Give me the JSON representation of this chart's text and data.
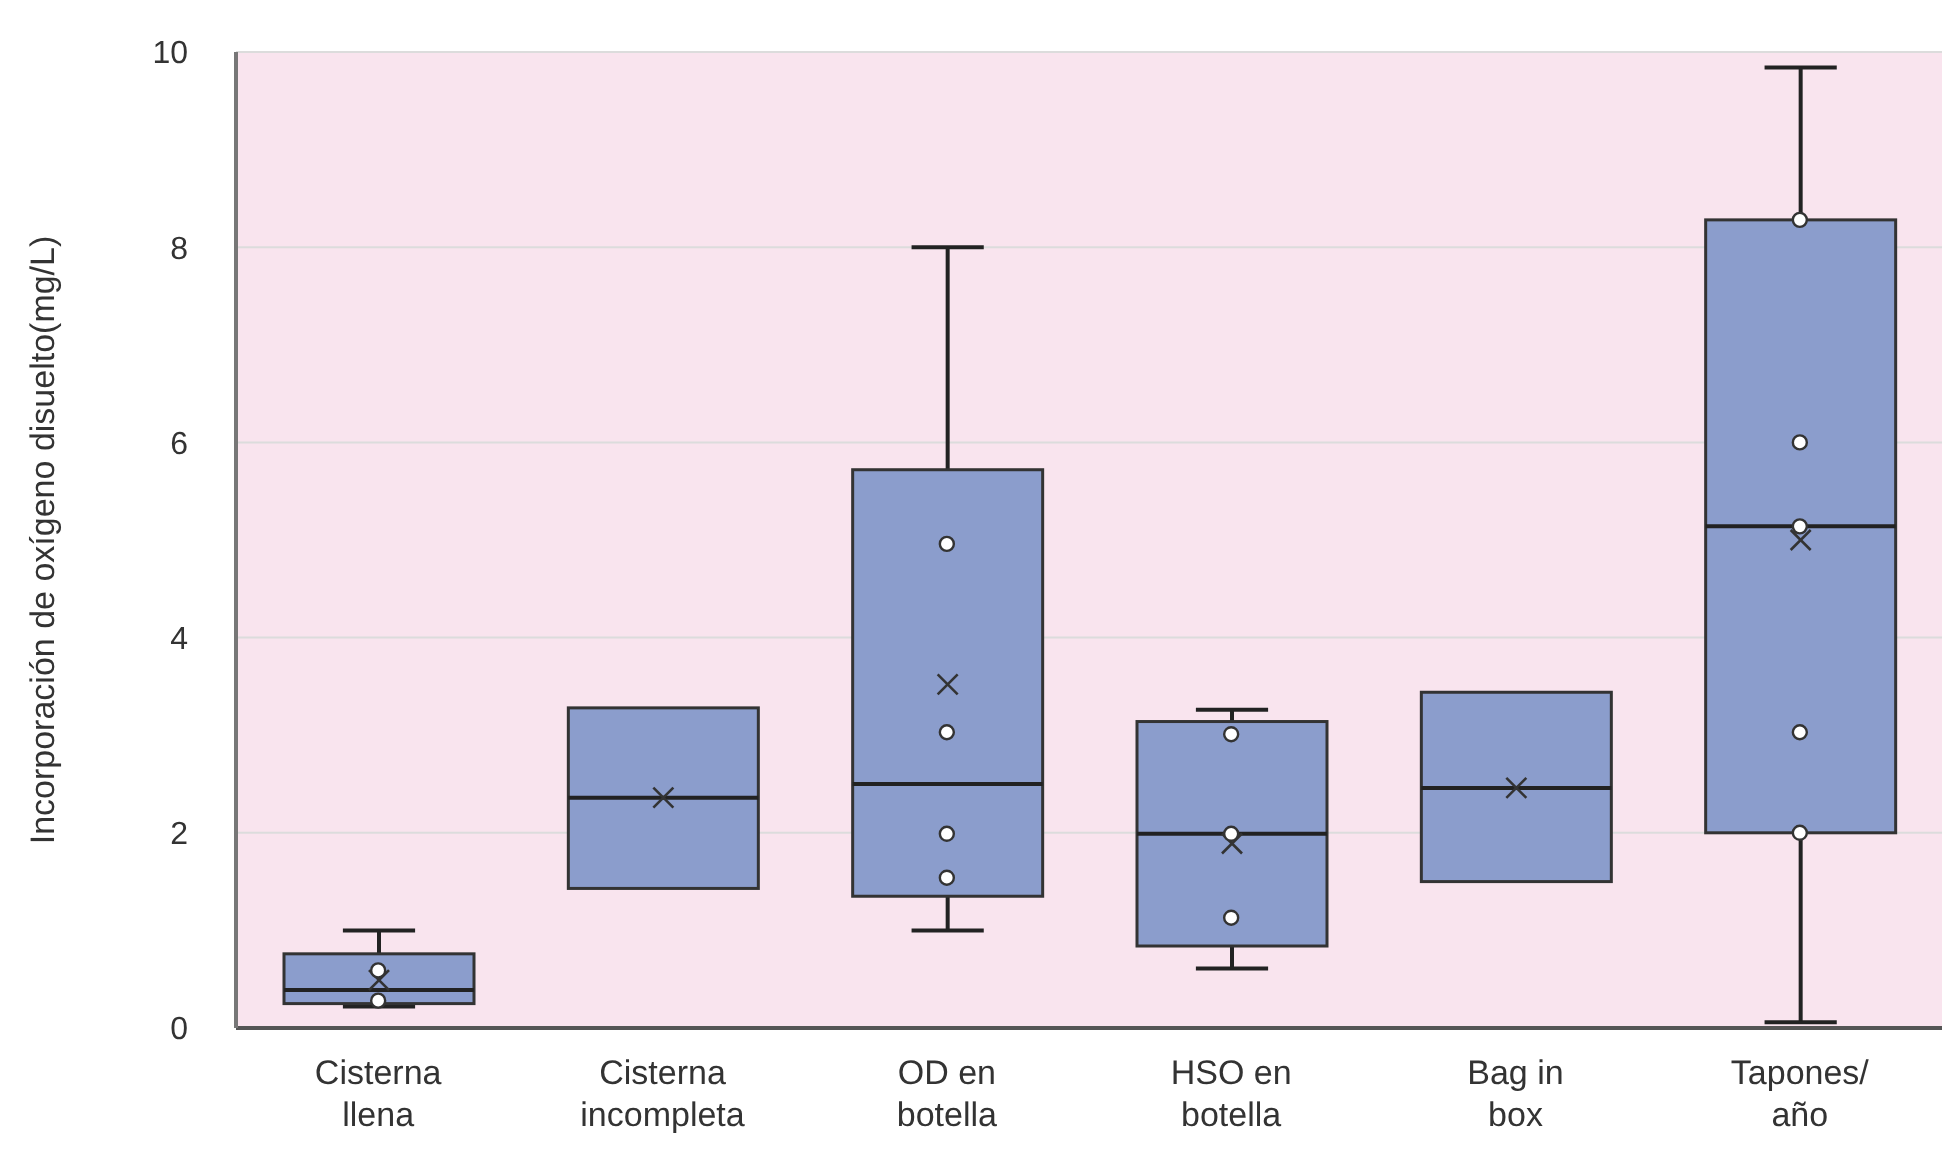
{
  "chart_data": {
    "type": "box",
    "ylabel": "Incorporación de oxígeno disuelto(mg/L)",
    "categories": [
      "Cisterna llena",
      "Cisterna incompleta",
      "OD en botella",
      "HSO en botella",
      "Bag in box",
      "Tapones/ año"
    ],
    "series": [
      {
        "color": "#8b9dcc",
        "boxes": [
          {
            "low": 0.22,
            "q1": 0.25,
            "median": 0.39,
            "q3": 0.76,
            "high": 1.0,
            "mean": 0.49
          },
          {
            "low": 1.43,
            "q1": 1.43,
            "median": 2.36,
            "q3": 3.28,
            "high": 3.28,
            "mean": 2.36
          },
          {
            "low": 1.0,
            "q1": 1.35,
            "median": 2.5,
            "q3": 5.72,
            "high": 8.0,
            "mean": 3.52
          },
          {
            "low": 0.61,
            "q1": 0.84,
            "median": 1.99,
            "q3": 3.14,
            "high": 3.26,
            "mean": 1.89
          },
          {
            "low": 1.5,
            "q1": 1.5,
            "median": 2.46,
            "q3": 3.44,
            "high": 3.44,
            "mean": 2.46
          },
          {
            "low": 0.06,
            "q1": 2.0,
            "median": 5.14,
            "q3": 8.28,
            "high": 9.84,
            "mean": 5.0
          }
        ]
      },
      {
        "type": "scatter",
        "color": "#ffffff",
        "marker": "circle",
        "x": [
          "Cisterna llena",
          "Cisterna llena",
          "OD en botella",
          "OD en botella",
          "OD en botella",
          "OD en botella",
          "HSO en botella",
          "HSO en botella",
          "HSO en botella",
          "Tapones/ año",
          "Tapones/ año",
          "Tapones/ año",
          "Tapones/ año",
          "Tapones/ año"
        ],
        "values": [
          0.59,
          0.28,
          4.96,
          3.03,
          1.99,
          1.54,
          3.01,
          1.99,
          1.13,
          8.28,
          6.0,
          5.14,
          3.03,
          2.0
        ]
      }
    ],
    "ylim": [
      0,
      10
    ],
    "yticks": [
      0,
      2,
      4,
      6,
      8,
      10
    ],
    "grid": "y"
  }
}
